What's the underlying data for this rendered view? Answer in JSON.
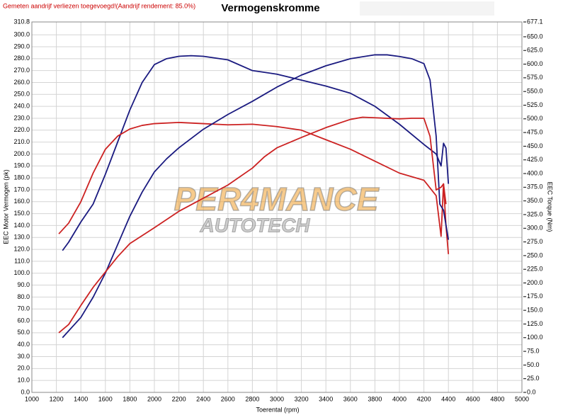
{
  "chart_data": {
    "type": "line",
    "title": "Vermogenskromme",
    "note": "Gemeten aandrijf verliezen toegevoegd!(Aandrijf rendement: 85.0%)",
    "xlabel": "Toerental (rpm)",
    "ylabel": "EEC Motor Vermogen (pk)",
    "y2label": "EEC Torque (Nm)",
    "watermark": [
      "PER4MANCE",
      "AUTOTECH"
    ],
    "grid": true,
    "xlim": [
      1000,
      5000
    ],
    "xticks": [
      1000,
      1200,
      1400,
      1600,
      1800,
      2000,
      2200,
      2400,
      2600,
      2800,
      3000,
      3200,
      3400,
      3600,
      3800,
      4000,
      4200,
      4400,
      4600,
      4800,
      5000
    ],
    "ylim": [
      0,
      310.8
    ],
    "yticks": [
      {
        "value": 0,
        "label": "0.0"
      },
      {
        "value": 10,
        "label": "10.0"
      },
      {
        "value": 20,
        "label": "20.0"
      },
      {
        "value": 30,
        "label": "30.0"
      },
      {
        "value": 40,
        "label": "40.0"
      },
      {
        "value": 50,
        "label": "50.0"
      },
      {
        "value": 60,
        "label": "60.0"
      },
      {
        "value": 70,
        "label": "70.0"
      },
      {
        "value": 80,
        "label": "80.0"
      },
      {
        "value": 90,
        "label": "90.0"
      },
      {
        "value": 100,
        "label": "100.0"
      },
      {
        "value": 110,
        "label": "110.0"
      },
      {
        "value": 120,
        "label": "120.0"
      },
      {
        "value": 130,
        "label": "130.0"
      },
      {
        "value": 140,
        "label": "140.0"
      },
      {
        "value": 150,
        "label": "150.0"
      },
      {
        "value": 160,
        "label": "160.0"
      },
      {
        "value": 170,
        "label": "170.0"
      },
      {
        "value": 180,
        "label": "180.0"
      },
      {
        "value": 190,
        "label": "190.0"
      },
      {
        "value": 200,
        "label": "200.0"
      },
      {
        "value": 210,
        "label": "210.0"
      },
      {
        "value": 220,
        "label": "220.0"
      },
      {
        "value": 230,
        "label": "230.0"
      },
      {
        "value": 240,
        "label": "240.0"
      },
      {
        "value": 250,
        "label": "250.0"
      },
      {
        "value": 260,
        "label": "260.0"
      },
      {
        "value": 270,
        "label": "270.0"
      },
      {
        "value": 280,
        "label": "280.0"
      },
      {
        "value": 290,
        "label": "290.0"
      },
      {
        "value": 300,
        "label": "300.0"
      },
      {
        "value": 310.8,
        "label": "310.8"
      }
    ],
    "y2lim": [
      0,
      677.1
    ],
    "y2ticks": [
      {
        "value": 0,
        "label": "0.0"
      },
      {
        "value": 25,
        "label": "25.0"
      },
      {
        "value": 50,
        "label": "50.0"
      },
      {
        "value": 75,
        "label": "75.0"
      },
      {
        "value": 100,
        "label": "100.0"
      },
      {
        "value": 125,
        "label": "125.0"
      },
      {
        "value": 150,
        "label": "150.0"
      },
      {
        "value": 175,
        "label": "175.0"
      },
      {
        "value": 200,
        "label": "200.0"
      },
      {
        "value": 225,
        "label": "225.0"
      },
      {
        "value": 250,
        "label": "250.0"
      },
      {
        "value": 275,
        "label": "275.0"
      },
      {
        "value": 300,
        "label": "300.0"
      },
      {
        "value": 325,
        "label": "325.0"
      },
      {
        "value": 350,
        "label": "350.0"
      },
      {
        "value": 375,
        "label": "375.0"
      },
      {
        "value": 400,
        "label": "400.0"
      },
      {
        "value": 425,
        "label": "425.0"
      },
      {
        "value": 450,
        "label": "450.0"
      },
      {
        "value": 475,
        "label": "475.0"
      },
      {
        "value": 500,
        "label": "500.0"
      },
      {
        "value": 525,
        "label": "525.0"
      },
      {
        "value": 550,
        "label": "550.0"
      },
      {
        "value": 575,
        "label": "575.0"
      },
      {
        "value": 600,
        "label": "600.0"
      },
      {
        "value": 625,
        "label": "625.0"
      },
      {
        "value": 650,
        "label": "650.0"
      },
      {
        "value": 677.1,
        "label": "677.1"
      }
    ],
    "series": [
      {
        "color": "#1a1a80",
        "x": [
          1250,
          1300,
          1400,
          1500,
          1600,
          1700,
          1800,
          1900,
          2000,
          2100,
          2200,
          2300,
          2400,
          2600,
          2800,
          3000,
          3200,
          3400,
          3600,
          3800,
          4000,
          4200,
          4300,
          4340,
          4360,
          4380,
          4400
        ],
        "values": [
          119,
          126,
          143,
          158,
          183,
          210,
          237,
          260,
          275,
          280,
          282,
          282.5,
          282,
          279,
          270,
          267,
          262,
          257,
          251,
          240,
          225,
          208,
          200,
          190,
          209,
          205,
          175
        ]
      },
      {
        "color": "#cc2222",
        "x": [
          1220,
          1300,
          1400,
          1500,
          1600,
          1700,
          1800,
          1900,
          2000,
          2200,
          2400,
          2600,
          2800,
          3000,
          3200,
          3400,
          3600,
          3800,
          4000,
          4200,
          4300,
          4340,
          4360,
          4380,
          4400
        ],
        "values": [
          133,
          142,
          160,
          184,
          204,
          215,
          221,
          224,
          225.5,
          226.5,
          225.5,
          224.5,
          225,
          223,
          220,
          212,
          204,
          194,
          184,
          178,
          165,
          131,
          175,
          140,
          116
        ]
      },
      {
        "color": "#1a1a80",
        "axis": "y2",
        "x": [
          1250,
          1400,
          1500,
          1600,
          1700,
          1800,
          1900,
          2000,
          2100,
          2200,
          2400,
          2600,
          2800,
          3000,
          3200,
          3400,
          3600,
          3800,
          3900,
          4000,
          4100,
          4200,
          4250,
          4300,
          4330,
          4360,
          4400
        ],
        "values": [
          100,
          137,
          174,
          218,
          270,
          322,
          366,
          403,
          427,
          447,
          481,
          508,
          532,
          558,
          580,
          597,
          610,
          617,
          617,
          614,
          610,
          601,
          571,
          468,
          344,
          333,
          279
        ]
      },
      {
        "color": "#cc2222",
        "axis": "y2",
        "x": [
          1220,
          1300,
          1400,
          1500,
          1600,
          1700,
          1800,
          2000,
          2200,
          2400,
          2600,
          2800,
          2900,
          3000,
          3200,
          3400,
          3600,
          3700,
          3800,
          4000,
          4100,
          4200,
          4250,
          4300,
          4340,
          4360,
          4380
        ],
        "values": [
          109,
          124,
          159,
          192,
          220,
          248,
          272,
          301,
          331,
          355,
          379,
          410,
          431,
          447,
          466,
          484,
          499,
          503,
          502,
          500,
          501,
          501,
          468,
          370,
          375,
          381,
          344
        ]
      }
    ]
  }
}
